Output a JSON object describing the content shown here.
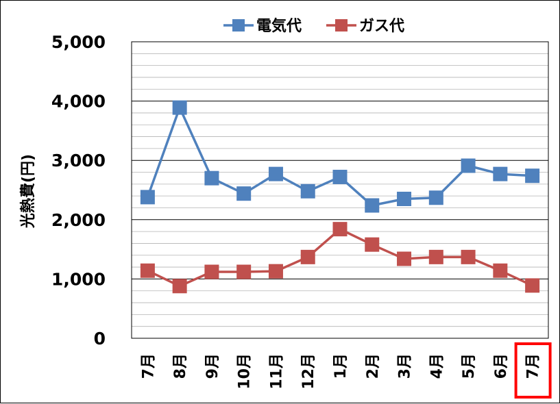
{
  "chart_data": {
    "type": "line",
    "title": "",
    "xlabel": "",
    "ylabel": "光熱費(円)",
    "ylim": [
      0,
      5000
    ],
    "y_ticks": [
      "0",
      "1,000",
      "2,000",
      "3,000",
      "4,000",
      "5,000"
    ],
    "y_tick_values": [
      0,
      1000,
      2000,
      3000,
      4000,
      5000
    ],
    "categories": [
      "7月",
      "8月",
      "9月",
      "10月",
      "11月",
      "12月",
      "1月",
      "2月",
      "3月",
      "4月",
      "5月",
      "6月",
      "7月"
    ],
    "legend_position": "top",
    "grid": true,
    "highlighted_category_index": 12,
    "highlight_color": "#ff0000",
    "series": [
      {
        "name": "電気代",
        "color": "#4f81bd",
        "values": [
          2380,
          3890,
          2700,
          2440,
          2770,
          2480,
          2720,
          2240,
          2350,
          2370,
          2910,
          2770,
          2740
        ]
      },
      {
        "name": "ガス代",
        "color": "#c0504d",
        "values": [
          1140,
          880,
          1120,
          1120,
          1130,
          1370,
          1840,
          1580,
          1340,
          1370,
          1370,
          1140,
          890
        ]
      }
    ]
  }
}
